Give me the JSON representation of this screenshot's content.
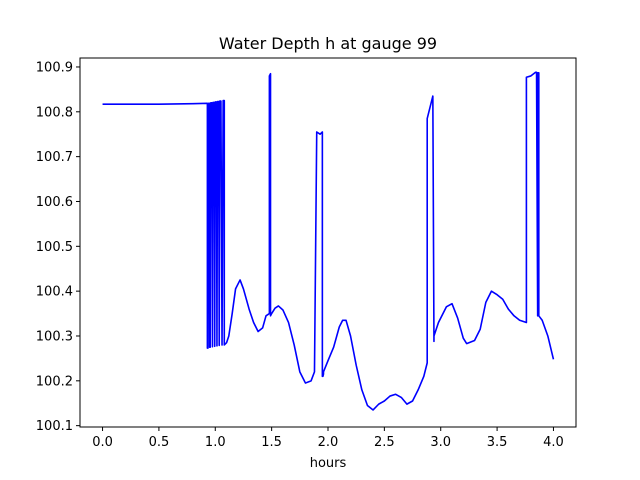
{
  "chart_data": {
    "type": "line",
    "title": "Water Depth h at gauge 99",
    "xlabel": "hours",
    "ylabel": "",
    "xlim": [
      -0.2,
      4.2
    ],
    "ylim": [
      100.097,
      100.92
    ],
    "xticks": [
      0.0,
      0.5,
      1.0,
      1.5,
      2.0,
      2.5,
      3.0,
      3.5,
      4.0
    ],
    "xtick_labels": [
      "0.0",
      "0.5",
      "1.0",
      "1.5",
      "2.0",
      "2.5",
      "3.0",
      "3.5",
      "4.0"
    ],
    "yticks": [
      100.1,
      100.2,
      100.3,
      100.4,
      100.5,
      100.6,
      100.7,
      100.8,
      100.9
    ],
    "ytick_labels": [
      "100.1",
      "100.2",
      "100.3",
      "100.4",
      "100.5",
      "100.6",
      "100.7",
      "100.8",
      "100.9"
    ],
    "grid": false,
    "colors": {
      "line": "#0000ff",
      "axes": "#000000",
      "background": "#ffffff"
    },
    "series": [
      {
        "x": [
          0.0,
          0.5,
          0.8,
          0.93,
          0.93,
          0.935,
          0.94,
          0.95,
          0.95,
          0.955,
          0.96,
          0.97,
          0.975,
          0.975,
          0.98,
          0.99,
          0.995,
          0.995,
          1.0,
          1.01,
          1.015,
          1.015,
          1.02,
          1.03,
          1.035,
          1.035,
          1.04,
          1.05,
          1.06,
          1.06,
          1.07,
          1.08,
          1.08,
          1.1,
          1.12,
          1.15,
          1.18,
          1.22,
          1.25,
          1.3,
          1.34,
          1.38,
          1.42,
          1.45,
          1.48,
          1.48,
          1.49,
          1.49,
          1.5,
          1.53,
          1.56,
          1.6,
          1.65,
          1.7,
          1.75,
          1.8,
          1.85,
          1.88,
          1.9,
          1.93,
          1.95,
          1.95,
          1.955,
          1.96,
          1.96,
          2.0,
          2.05,
          2.1,
          2.13,
          2.16,
          2.2,
          2.25,
          2.3,
          2.35,
          2.4,
          2.45,
          2.5,
          2.55,
          2.6,
          2.65,
          2.7,
          2.75,
          2.8,
          2.85,
          2.88,
          2.88,
          2.93,
          2.93,
          2.94,
          2.94,
          2.98,
          3.05,
          3.1,
          3.15,
          3.2,
          3.23,
          3.3,
          3.35,
          3.4,
          3.45,
          3.5,
          3.55,
          3.6,
          3.65,
          3.7,
          3.76,
          3.76,
          3.8,
          3.84,
          3.85,
          3.86,
          3.86,
          3.87,
          3.87,
          3.9,
          3.95,
          4.0
        ],
        "y": [
          100.817,
          100.817,
          100.818,
          100.819,
          100.273,
          100.273,
          100.819,
          100.819,
          100.275,
          100.275,
          100.82,
          100.82,
          100.276,
          100.276,
          100.821,
          100.821,
          100.277,
          100.277,
          100.822,
          100.822,
          100.278,
          100.278,
          100.823,
          100.823,
          100.279,
          100.279,
          100.824,
          100.824,
          100.28,
          100.28,
          100.825,
          100.825,
          100.28,
          100.285,
          100.3,
          100.35,
          100.405,
          100.425,
          100.405,
          100.36,
          100.33,
          100.31,
          100.318,
          100.345,
          100.35,
          100.88,
          100.885,
          100.345,
          100.35,
          100.362,
          100.367,
          100.358,
          100.33,
          100.28,
          100.22,
          100.195,
          100.2,
          100.22,
          100.755,
          100.75,
          100.755,
          100.21,
          100.21,
          100.215,
          100.22,
          100.245,
          100.275,
          100.32,
          100.335,
          100.335,
          100.3,
          100.235,
          100.18,
          100.145,
          100.135,
          100.148,
          100.155,
          100.166,
          100.17,
          100.163,
          100.148,
          100.155,
          100.18,
          100.21,
          100.24,
          100.785,
          100.835,
          100.835,
          100.288,
          100.3,
          100.33,
          100.365,
          100.372,
          100.34,
          100.295,
          100.283,
          100.29,
          100.315,
          100.375,
          100.4,
          100.392,
          100.382,
          100.36,
          100.345,
          100.335,
          100.33,
          100.877,
          100.88,
          100.888,
          100.888,
          100.345,
          100.887,
          100.887,
          100.345,
          100.335,
          100.3,
          100.248
        ]
      }
    ]
  }
}
